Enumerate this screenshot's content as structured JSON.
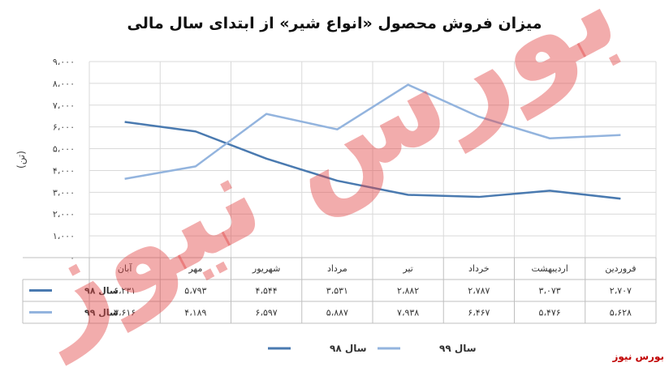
{
  "chart_data": {
    "type": "line",
    "title": "میزان فروش محصول «انواع شیر» از ابتدای سال مالی",
    "ylabel": "(تن)",
    "ylim": [
      0,
      9000
    ],
    "y_ticks": [
      "۰",
      "۱،۰۰۰",
      "۲،۰۰۰",
      "۳،۰۰۰",
      "۴،۰۰۰",
      "۵،۰۰۰",
      "۶،۰۰۰",
      "۷،۰۰۰",
      "۸،۰۰۰",
      "۹،۰۰۰"
    ],
    "grid": true,
    "legend_position": "bottom",
    "categories": [
      "فروردین",
      "اردیبهشت",
      "خرداد",
      "تیر",
      "مرداد",
      "شهریور",
      "مهر",
      "آبان"
    ],
    "series": [
      {
        "name": "سال ۹۸",
        "color": "#4a7ab0",
        "values": [
          2707,
          3073,
          2787,
          2882,
          3531,
          4544,
          5793,
          6231
        ],
        "labels": [
          "۲،۷۰۷",
          "۳،۰۷۳",
          "۲،۷۸۷",
          "۲،۸۸۲",
          "۳،۵۳۱",
          "۴،۵۴۴",
          "۵،۷۹۳",
          "۶،۲۳۱"
        ]
      },
      {
        "name": "سال ۹۹",
        "color": "#93b4de",
        "values": [
          5628,
          5476,
          6467,
          7938,
          5887,
          6597,
          4189,
          3616
        ],
        "labels": [
          "۵،۶۲۸",
          "۵،۴۷۶",
          "۶،۴۶۷",
          "۷،۹۳۸",
          "۵،۸۸۷",
          "۶،۵۹۷",
          "۴،۱۸۹",
          "۳،۶۱۶"
        ]
      }
    ]
  },
  "watermark": "بورس نیوز",
  "source": "بورس نیوز"
}
